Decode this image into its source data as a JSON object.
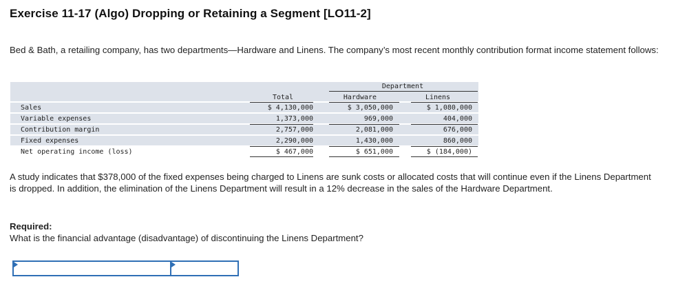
{
  "title": "Exercise 11-17 (Algo) Dropping or Retaining a Segment [LO11-2]",
  "intro": "Bed & Bath, a retailing company, has two departments—Hardware and Linens. The company’s most recent monthly contribution format income statement follows:",
  "statement": {
    "group_header": "Department",
    "columns": [
      "Total",
      "Hardware",
      "Linens"
    ],
    "rows": [
      {
        "label": "Sales",
        "total": "$ 4,130,000",
        "hardware": "$ 3,050,000",
        "linens": "$ 1,080,000"
      },
      {
        "label": "Variable expenses",
        "total": "1,373,000",
        "hardware": "969,000",
        "linens": "404,000"
      },
      {
        "label": "Contribution margin",
        "total": "2,757,000",
        "hardware": "2,081,000",
        "linens": "676,000"
      },
      {
        "label": "Fixed expenses",
        "total": "2,290,000",
        "hardware": "1,430,000",
        "linens": "860,000"
      },
      {
        "label": "Net operating income (loss)",
        "total": "$ 467,000",
        "hardware": "$ 651,000",
        "linens": "$ (184,000)"
      }
    ]
  },
  "study": "A study indicates that $378,000 of the fixed expenses being charged to Linens are sunk costs or allocated costs that will continue even if the Linens Department is dropped. In addition, the elimination of the Linens Department will result in a 12% decrease in the sales of the Hardware Department.",
  "required_label": "Required:",
  "required_question": "What is the financial advantage (disadvantage) of discontinuing the Linens Department?",
  "answer": {
    "label_value": "",
    "amount_value": ""
  },
  "colors": {
    "band": "#dde2ea",
    "input_border": "#2f6fb5"
  }
}
